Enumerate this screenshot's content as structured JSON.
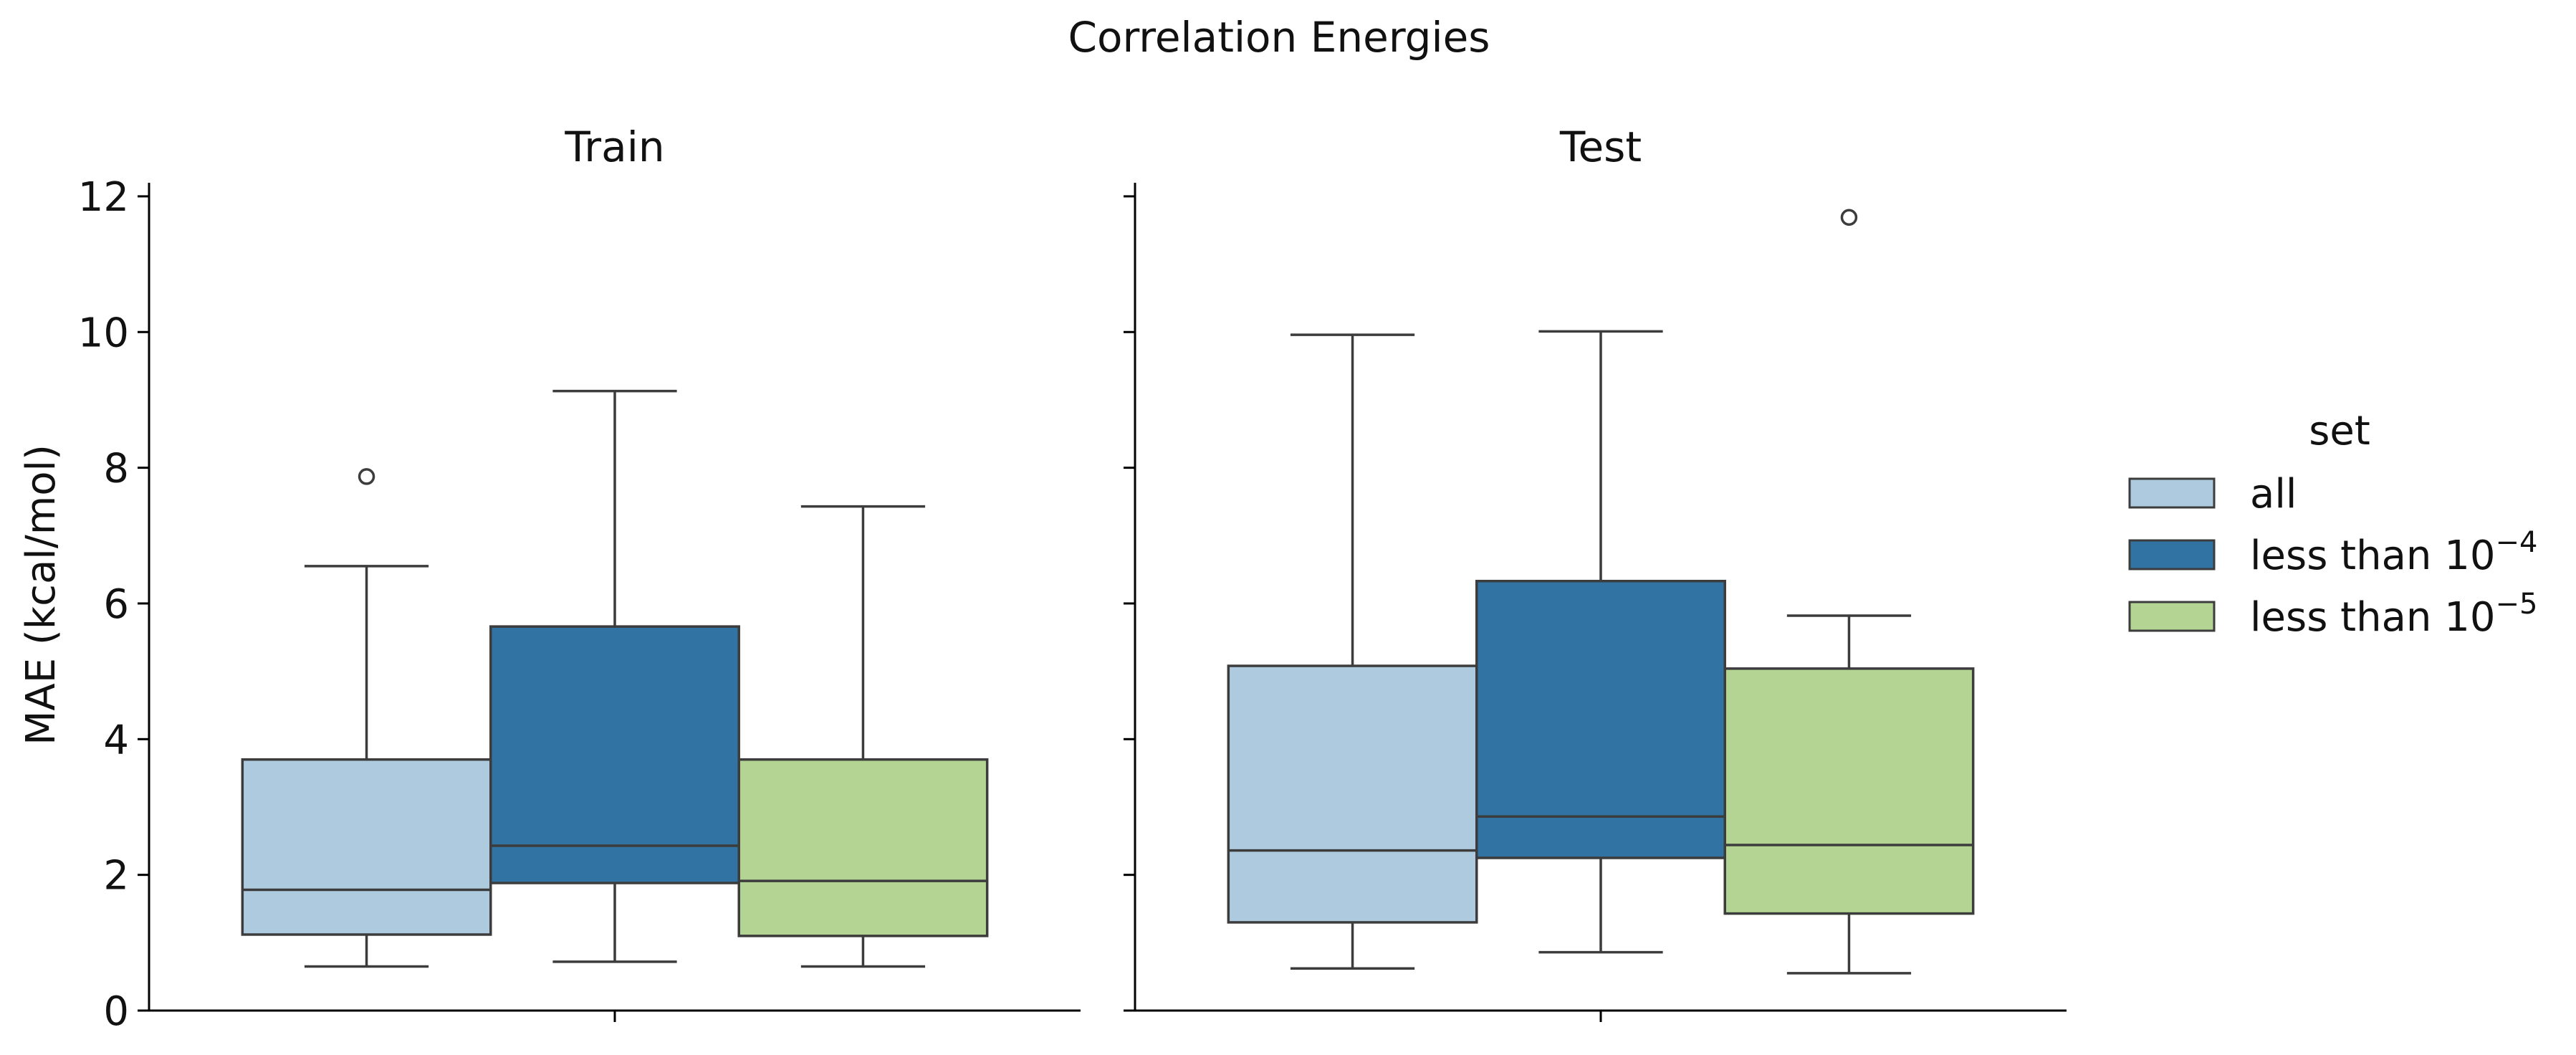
{
  "chart_data": {
    "type": "box",
    "title": "Correlation Energies",
    "ylabel": "MAE (kcal/mol)",
    "ylim": [
      0,
      12.2
    ],
    "yticks": [
      0,
      2,
      4,
      6,
      8,
      10,
      12
    ],
    "grid": false,
    "legend": {
      "title": "set",
      "placement": "right",
      "entries": [
        {
          "key": "all",
          "text": "all",
          "color": "#aecadf"
        },
        {
          "key": "lt4",
          "text": "less than 10",
          "sup": "−4",
          "color": "#3174a4"
        },
        {
          "key": "lt5",
          "text": "less than 10",
          "sup": "−5",
          "color": "#b4d494"
        }
      ]
    },
    "panels": [
      {
        "title": "Train",
        "boxes": [
          {
            "set": "all",
            "whisker_low": 0.65,
            "q1": 1.12,
            "median": 1.78,
            "q3": 3.7,
            "whisker_high": 6.55,
            "outliers": [
              7.87
            ]
          },
          {
            "set": "lt4",
            "whisker_low": 0.72,
            "q1": 1.88,
            "median": 2.43,
            "q3": 5.66,
            "whisker_high": 9.13,
            "outliers": []
          },
          {
            "set": "lt5",
            "whisker_low": 0.65,
            "q1": 1.1,
            "median": 1.91,
            "q3": 3.7,
            "whisker_high": 7.43,
            "outliers": []
          }
        ]
      },
      {
        "title": "Test",
        "boxes": [
          {
            "set": "all",
            "whisker_low": 0.62,
            "q1": 1.3,
            "median": 2.36,
            "q3": 5.08,
            "whisker_high": 9.96,
            "outliers": []
          },
          {
            "set": "lt4",
            "whisker_low": 0.86,
            "q1": 2.25,
            "median": 2.86,
            "q3": 6.33,
            "whisker_high": 10.01,
            "outliers": []
          },
          {
            "set": "lt5",
            "whisker_low": 0.55,
            "q1": 1.43,
            "median": 2.44,
            "q3": 5.04,
            "whisker_high": 5.82,
            "outliers": [
              11.69
            ]
          }
        ]
      }
    ]
  }
}
